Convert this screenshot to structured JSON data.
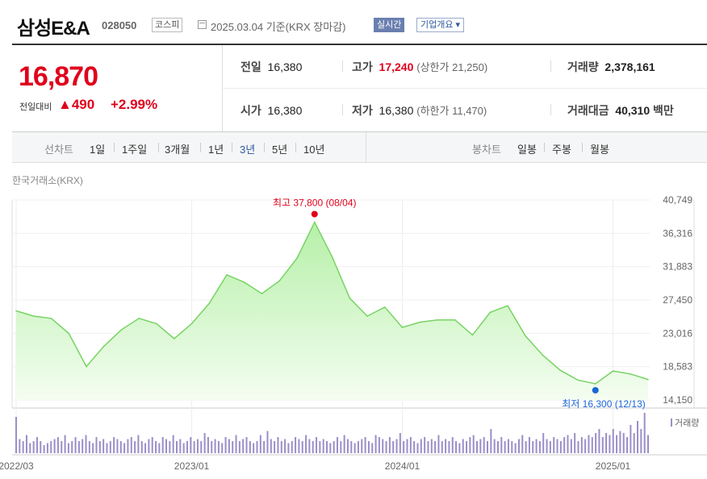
{
  "header": {
    "name": "삼성E&A",
    "code": "028050",
    "market": "코스피",
    "date": "2025.03.04",
    "basis": "기준(KRX 장마감)",
    "realtime": "실시간",
    "corp_info": "기업개요",
    "corp_info_arrow": "▾"
  },
  "price": {
    "current": "16,870",
    "change_label": "전일대비",
    "change_arrow": "▲",
    "change": "490",
    "change_pct": "+2.99%"
  },
  "stats": {
    "prev_label": "전일",
    "prev": "16,380",
    "high_label": "고가",
    "high": "17,240",
    "upper_label": "(상한가 21,250)",
    "volume_label": "거래량",
    "volume": "2,378,161",
    "open_label": "시가",
    "open": "16,380",
    "low_label": "저가",
    "low": "16,380",
    "lower_label": "(하한가 11,470)",
    "amount_label": "거래대금",
    "amount": "40,310",
    "amount_unit": "백만"
  },
  "toolbar": {
    "line_label": "선차트",
    "periods": [
      "1일",
      "1주일",
      "3개월",
      "1년",
      "3년",
      "5년",
      "10년"
    ],
    "selected_period": "3년",
    "candle_label": "봉차트",
    "candles": [
      "일봉",
      "주봉",
      "월봉"
    ]
  },
  "chart_source": "한국거래소(KRX)",
  "chart_data": {
    "type": "area",
    "series": [
      {
        "x": [
          "2022-03",
          "2022-04",
          "2022-05",
          "2022-06",
          "2022-07",
          "2022-08",
          "2022-09",
          "2022-10",
          "2022-11",
          "2022-12",
          "2023-01",
          "2023-02",
          "2023-03",
          "2023-04",
          "2023-05",
          "2023-06",
          "2023-07",
          "2023-08",
          "2023-09",
          "2023-10",
          "2023-11",
          "2023-12",
          "2024-01",
          "2024-02",
          "2024-03",
          "2024-04",
          "2024-05",
          "2024-06",
          "2024-07",
          "2024-08",
          "2024-09",
          "2024-10",
          "2024-11",
          "2024-12",
          "2025-01",
          "2025-02",
          "2025-03"
        ],
        "values": [
          26000,
          25300,
          25000,
          23000,
          18600,
          21300,
          23500,
          25000,
          24300,
          22300,
          24300,
          27000,
          30800,
          29800,
          28300,
          30000,
          33000,
          37800,
          33200,
          27700,
          25300,
          26500,
          23800,
          24500,
          24800,
          24800,
          22800,
          25800,
          26700,
          22700,
          20100,
          18100,
          16800,
          16300,
          18000,
          17600,
          16870
        ]
      }
    ],
    "ylim": [
      14150,
      40749
    ],
    "y_ticks": [
      "40,749",
      "36,316",
      "31,883",
      "27,450",
      "23,016",
      "18,583",
      "14,150"
    ],
    "x_ticks": [
      "2022/03",
      "2023/01",
      "2024/01",
      "2025/01"
    ],
    "max_label": "최고 37,800 (08/04)",
    "min_label": "최저 16,300 (12/13)",
    "volume_label": "거래량",
    "volume_values": [
      0.9,
      0.35,
      0.3,
      0.45,
      0.25,
      0.3,
      0.4,
      0.3,
      0.2,
      0.25,
      0.3,
      0.35,
      0.4,
      0.3,
      0.45,
      0.25,
      0.3,
      0.4,
      0.3,
      0.35,
      0.45,
      0.3,
      0.25,
      0.4,
      0.3,
      0.35,
      0.25,
      0.3,
      0.4,
      0.35,
      0.3,
      0.25,
      0.35,
      0.4,
      0.3,
      0.45,
      0.3,
      0.25,
      0.35,
      0.4,
      0.3,
      0.25,
      0.4,
      0.35,
      0.3,
      0.45,
      0.3,
      0.35,
      0.25,
      0.3,
      0.4,
      0.3,
      0.35,
      0.3,
      0.5,
      0.4,
      0.3,
      0.35,
      0.3,
      0.25,
      0.4,
      0.35,
      0.3,
      0.45,
      0.3,
      0.35,
      0.4,
      0.3,
      0.25,
      0.3,
      0.45,
      0.3,
      0.55,
      0.35,
      0.3,
      0.4,
      0.3,
      0.35,
      0.25,
      0.3,
      0.4,
      0.35,
      0.3,
      0.45,
      0.35,
      0.3,
      0.4,
      0.3,
      0.35,
      0.3,
      0.25,
      0.3,
      0.4,
      0.3,
      0.45,
      0.35,
      0.3,
      0.25,
      0.3,
      0.35,
      0.4,
      0.3,
      0.25,
      0.45,
      0.4,
      0.35,
      0.3,
      0.4,
      0.3,
      0.35,
      0.5,
      0.3,
      0.35,
      0.4,
      0.3,
      0.25,
      0.35,
      0.4,
      0.3,
      0.35,
      0.3,
      0.45,
      0.3,
      0.35,
      0.3,
      0.4,
      0.3,
      0.25,
      0.35,
      0.3,
      0.4,
      0.45,
      0.3,
      0.35,
      0.4,
      0.3,
      0.6,
      0.35,
      0.3,
      0.4,
      0.3,
      0.35,
      0.3,
      0.25,
      0.35,
      0.45,
      0.3,
      0.4,
      0.3,
      0.35,
      0.3,
      0.5,
      0.35,
      0.3,
      0.4,
      0.35,
      0.3,
      0.4,
      0.45,
      0.35,
      0.5,
      0.3,
      0.4,
      0.35,
      0.45,
      0.4,
      0.5,
      0.6,
      0.4,
      0.5,
      0.45,
      0.6,
      0.45,
      0.55,
      0.5,
      0.4,
      0.7,
      0.5,
      0.8,
      0.6,
      1.0,
      0.45
    ]
  }
}
